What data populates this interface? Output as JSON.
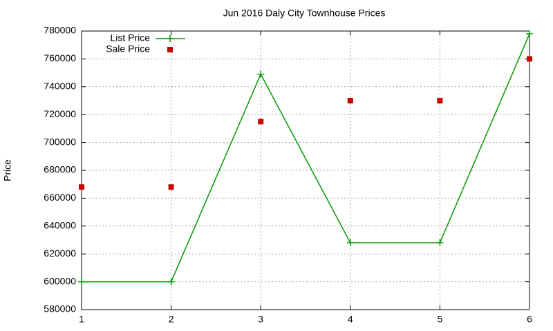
{
  "chart_data": {
    "type": "line",
    "title": "Jun 2016 Daly City Townhouse Prices",
    "y_label": "Price",
    "x": [
      1,
      2,
      3,
      4,
      5,
      6
    ],
    "xlim": [
      1,
      6
    ],
    "xticks": [
      1,
      2,
      3,
      4,
      5,
      6
    ],
    "ylim": [
      580000,
      780000
    ],
    "yticks": [
      580000,
      600000,
      620000,
      640000,
      660000,
      680000,
      700000,
      720000,
      740000,
      760000,
      780000
    ],
    "grid": true,
    "legend": "top-left",
    "series": [
      {
        "name": "List Price",
        "color": "#009900",
        "style": "linespoints",
        "values": [
          600000,
          600000,
          749000,
          628000,
          628000,
          778000
        ]
      },
      {
        "name": "Sale Price",
        "color": "#cc0000",
        "style": "points",
        "values": [
          668000,
          668000,
          715000,
          730000,
          730000,
          760000
        ]
      }
    ]
  }
}
